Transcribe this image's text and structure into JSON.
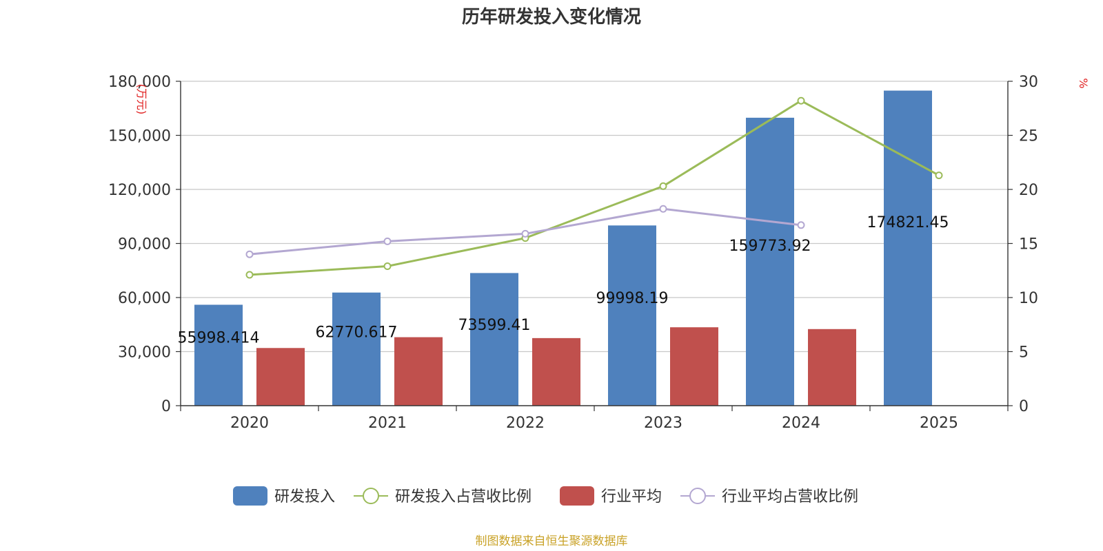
{
  "chart_data": {
    "type": "bar",
    "title": "历年研发投入变化情况",
    "left_axis_unit": "(万元)",
    "right_axis_unit": "%",
    "categories": [
      "2020",
      "2021",
      "2022",
      "2023",
      "2024",
      "2025"
    ],
    "left_axis": {
      "ylim": [
        0,
        180000
      ],
      "ticks": [
        "0",
        "30,000",
        "60,000",
        "90,000",
        "120,000",
        "150,000",
        "180,000"
      ]
    },
    "right_axis": {
      "ylim": [
        0,
        30
      ],
      "ticks": [
        "0",
        "5",
        "10",
        "15",
        "20",
        "25",
        "30"
      ]
    },
    "grid": true,
    "legend_position": "bottom",
    "series": [
      {
        "name": "研发投入",
        "kind": "bar",
        "axis": "left",
        "color": "#4f81bd",
        "values": [
          55998.414,
          62770.617,
          73599.41,
          99998.19,
          159773.92,
          174821.45
        ],
        "labels": [
          "55998.414",
          "62770.617",
          "73599.41",
          "99998.19",
          "159773.92",
          "174821.45"
        ]
      },
      {
        "name": "研发投入占营收比例",
        "kind": "line",
        "axis": "right",
        "color": "#9bbb59",
        "values": [
          12.1,
          12.9,
          15.5,
          20.3,
          28.2,
          21.3
        ]
      },
      {
        "name": "行业平均",
        "kind": "bar",
        "axis": "left",
        "color": "#c0504d",
        "values": [
          32000,
          38000,
          37500,
          43500,
          42500,
          null
        ]
      },
      {
        "name": "行业平均占营收比例",
        "kind": "line",
        "axis": "right",
        "color": "#b3a7d1",
        "values": [
          14.0,
          15.2,
          15.9,
          18.2,
          16.7,
          null
        ]
      }
    ]
  },
  "footer": {
    "source": "制图数据来自恒生聚源数据库"
  }
}
